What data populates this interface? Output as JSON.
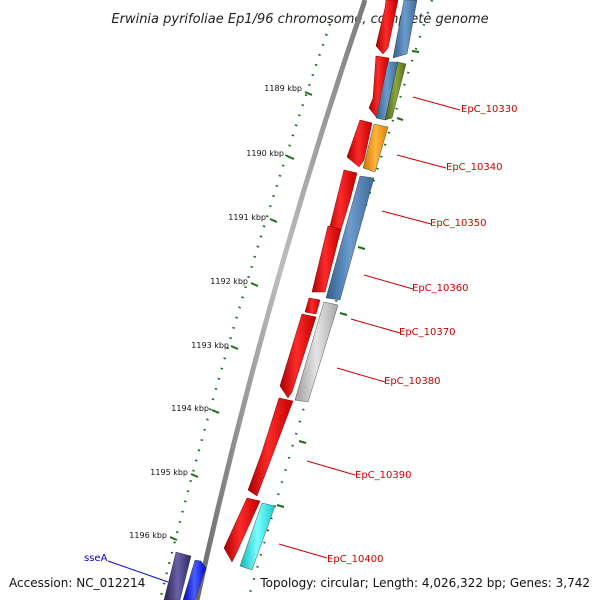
{
  "title": "Erwinia pyrifoliae Ep1/96 chromosome, complete genome",
  "footer": {
    "accession": "Accession: NC_012214",
    "summary": "Topology: circular; Length: 4,026,322 bp; Genes: 3,742"
  },
  "colors": {
    "red": "#ee0000",
    "steel_blue": "#4f84b8",
    "olive": "#6e8a26",
    "orange": "#f39a10",
    "gray": "#c4c4c4",
    "cyan": "#22f0f0",
    "navy": "#3a3277",
    "blue": "#0010ff",
    "tick_green": "#1a6e1a",
    "label_red": "#cc0000",
    "label_blue": "#0000cc",
    "backbone": "#8a8a8a"
  },
  "kbp_labels": [
    "1189 kbp",
    "1190 kbp",
    "1191 kbp",
    "1192 kbp",
    "1193 kbp",
    "1194 kbp",
    "1195 kbp",
    "1196 kbp"
  ],
  "gene_labels": [
    "EpC_10330",
    "EpC_10340",
    "EpC_10350",
    "EpC_10360",
    "EpC_10370",
    "EpC_10380",
    "EpC_10390",
    "EpC_10400"
  ],
  "feature_label": "sseA"
}
